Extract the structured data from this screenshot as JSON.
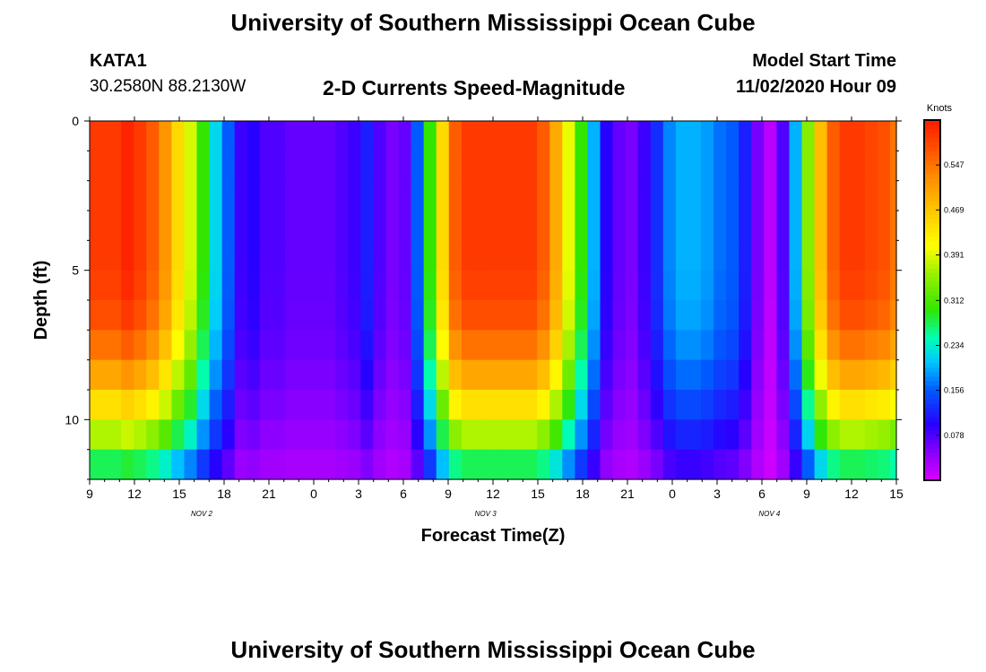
{
  "header": {
    "title": "University of Southern Mississippi Ocean Cube",
    "station": "KATA1",
    "coords": "30.2580N 88.2130W",
    "subtitle": "2-D Currents Speed-Magnitude",
    "model_label": "Model Start Time",
    "model_time": "11/02/2020 Hour 09"
  },
  "footer": {
    "title": "University of Southern Mississippi Ocean Cube"
  },
  "chart_data": {
    "type": "heatmap",
    "title": "2-D Currents Speed-Magnitude",
    "xlabel": "Forecast Time(Z)",
    "ylabel": "Depth (ft)",
    "x_tick_labels": [
      "9",
      "12",
      "15",
      "18",
      "21",
      "0",
      "3",
      "6",
      "9",
      "12",
      "15",
      "18",
      "21",
      "0",
      "3",
      "6",
      "9",
      "12",
      "15"
    ],
    "x_date_labels": [
      {
        "text": "NOV 2",
        "hour_index": 7.5
      },
      {
        "text": "NOV 3",
        "hour_index": 26.5
      },
      {
        "text": "NOV 4",
        "hour_index": 45.5
      }
    ],
    "x_range_hours": [
      0,
      54
    ],
    "y_tick_labels": [
      "0",
      "5",
      "10"
    ],
    "y_range_ft": [
      0,
      12
    ],
    "colorbar": {
      "label": "Knots",
      "ticks": [
        "0.547",
        "0.469",
        "0.391",
        "0.312",
        "0.234",
        "0.156",
        "0.078"
      ],
      "tick_values": [
        0.547,
        0.469,
        0.391,
        0.312,
        0.234,
        0.156,
        0.078
      ],
      "range": [
        0,
        0.625
      ]
    },
    "surface_speed_knots_by_hour": [
      0.6,
      0.6,
      0.6,
      0.62,
      0.6,
      0.57,
      0.52,
      0.45,
      0.39,
      0.3,
      0.22,
      0.16,
      0.09,
      0.1,
      0.08,
      0.08,
      0.07,
      0.07,
      0.07,
      0.07,
      0.08,
      0.09,
      0.12,
      0.08,
      0.06,
      0.07,
      0.16,
      0.3,
      0.45,
      0.57,
      0.6,
      0.6,
      0.6,
      0.6,
      0.6,
      0.6,
      0.57,
      0.5,
      0.4,
      0.3,
      0.2,
      0.1,
      0.07,
      0.06,
      0.09,
      0.13,
      0.18,
      0.2,
      0.2,
      0.19,
      0.17,
      0.16,
      0.12,
      0.06,
      0.02,
      0.08,
      0.2,
      0.35,
      0.48,
      0.57,
      0.6,
      0.6,
      0.59,
      0.58,
      0.55
    ],
    "surface_speed_resolution": "quarter of a 3-hour tick interval per column",
    "depth_decay_rows_ft": [
      0.5,
      1.5,
      2.5,
      3.5,
      4.5,
      5.5,
      6.5,
      7.5,
      8.5,
      9.5,
      10.5,
      11.5
    ],
    "depth_factors": [
      1.0,
      1.0,
      1.0,
      1.0,
      1.0,
      0.99,
      0.97,
      0.92,
      0.84,
      0.74,
      0.62,
      0.46
    ]
  }
}
